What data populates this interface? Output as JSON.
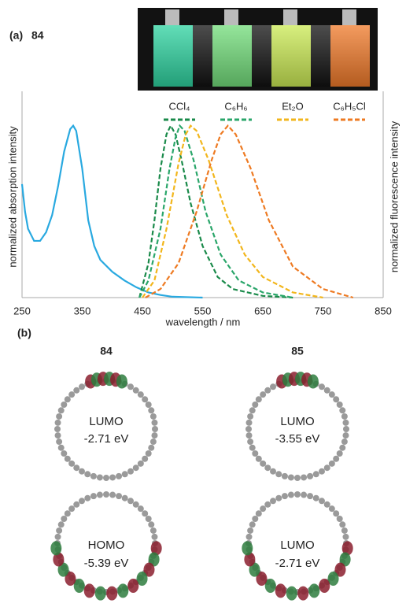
{
  "chart_data": {
    "type": "line",
    "panel_label": "(a)",
    "compound": "84",
    "x_label": "wavelength / nm",
    "y_label": "normalized absorption intensity",
    "y2_label": "normalized fluorescence intensity",
    "xlim": [
      250,
      850
    ],
    "xticks": [
      250,
      350,
      450,
      550,
      650,
      750,
      850
    ],
    "ylim": [
      0,
      1.2
    ],
    "y2lim": [
      0,
      1.2
    ],
    "series": [
      {
        "color": "#29a9e0",
        "line_style": "solid",
        "x": [
          250,
          255,
          260,
          270,
          280,
          290,
          300,
          310,
          320,
          330,
          335,
          340,
          350,
          360,
          370,
          380,
          400,
          420,
          440,
          460,
          480,
          500,
          550
        ],
        "values": [
          0.66,
          0.5,
          0.4,
          0.33,
          0.33,
          0.38,
          0.48,
          0.65,
          0.85,
          0.98,
          1.0,
          0.97,
          0.75,
          0.45,
          0.3,
          0.22,
          0.15,
          0.1,
          0.06,
          0.03,
          0.015,
          0.005,
          0
        ]
      },
      {
        "name": "CCl₄",
        "color": "#1a8a4a",
        "line_style": "dashed",
        "axis": "y2",
        "x": [
          445,
          460,
          470,
          480,
          490,
          497,
          505,
          515,
          530,
          550,
          575,
          600,
          650,
          700
        ],
        "values": [
          0,
          0.2,
          0.45,
          0.75,
          0.95,
          1.0,
          0.95,
          0.8,
          0.55,
          0.3,
          0.12,
          0.05,
          0.01,
          0
        ]
      },
      {
        "name": "C₆H₆",
        "color": "#2aa66a",
        "line_style": "dashed",
        "axis": "y2",
        "x": [
          445,
          460,
          480,
          495,
          505,
          512,
          520,
          535,
          555,
          580,
          610,
          650,
          700
        ],
        "values": [
          0,
          0.1,
          0.4,
          0.75,
          0.93,
          1.0,
          0.97,
          0.8,
          0.5,
          0.25,
          0.1,
          0.03,
          0
        ]
      },
      {
        "name": "Et₂O",
        "color": "#f2b61c",
        "line_style": "dashed",
        "axis": "y2",
        "x": [
          450,
          470,
          490,
          510,
          522,
          530,
          540,
          560,
          590,
          620,
          650,
          700,
          750
        ],
        "values": [
          0,
          0.1,
          0.4,
          0.78,
          0.95,
          1.0,
          0.97,
          0.8,
          0.48,
          0.25,
          0.12,
          0.03,
          0
        ]
      },
      {
        "name": "C₆H₅Cl",
        "color": "#ee7a22",
        "line_style": "dashed",
        "axis": "y2",
        "x": [
          455,
          480,
          510,
          540,
          565,
          580,
          592,
          605,
          630,
          660,
          700,
          750,
          800
        ],
        "values": [
          0,
          0.05,
          0.2,
          0.5,
          0.8,
          0.95,
          1.0,
          0.95,
          0.75,
          0.45,
          0.18,
          0.05,
          0
        ]
      }
    ]
  },
  "panel_b": {
    "label": "(b)",
    "columns": [
      "84",
      "85"
    ],
    "orbitals": [
      {
        "name": "LUMO",
        "energy": "-2.71 eV"
      },
      {
        "name": "LUMO",
        "energy": "-3.55 eV"
      },
      {
        "name": "HOMO",
        "energy": "-5.39 eV"
      },
      {
        "name": "LUMO",
        "energy": "-2.71 eV"
      }
    ]
  }
}
